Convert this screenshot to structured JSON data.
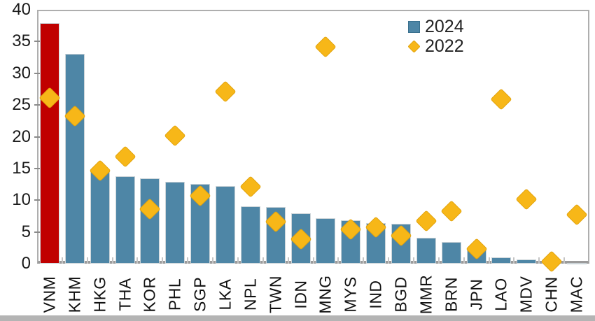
{
  "chart_data": {
    "type": "bar",
    "title": "",
    "xlabel": "",
    "ylabel": "",
    "ylim": [
      0,
      40
    ],
    "yticks": [
      0,
      5,
      10,
      15,
      20,
      25,
      30,
      35,
      40
    ],
    "grid": false,
    "legend_position": "top-right",
    "categories": [
      "VNM",
      "KHM",
      "HKG",
      "THA",
      "KOR",
      "PHL",
      "SGP",
      "LKA",
      "NPL",
      "TWN",
      "IDN",
      "MNG",
      "MYS",
      "IND",
      "BGD",
      "MMR",
      "BRN",
      "JPN",
      "LAO",
      "MDV",
      "CHN",
      "MAC"
    ],
    "series": [
      {
        "name": "2024",
        "type": "bar",
        "color": "#4e86a6",
        "values": [
          37.9,
          33.1,
          14.8,
          13.8,
          13.4,
          12.9,
          12.6,
          12.2,
          9.0,
          8.9,
          7.9,
          7.2,
          6.8,
          6.4,
          6.3,
          4.1,
          3.4,
          2.3,
          1.0,
          0.7,
          0.4,
          0.15
        ]
      },
      {
        "name": "2022",
        "type": "scatter",
        "marker": "diamond",
        "color": "#f7b718",
        "values": [
          26.1,
          23.3,
          14.7,
          16.9,
          8.6,
          20.2,
          10.7,
          27.1,
          12.1,
          6.6,
          3.9,
          34.2,
          5.4,
          5.7,
          4.4,
          6.7,
          8.3,
          2.3,
          25.9,
          10.1,
          0.3,
          7.7
        ]
      }
    ],
    "highlight": {
      "category": "VNM",
      "color": "#c00000"
    }
  },
  "legend": {
    "items": [
      {
        "label": "2024",
        "marker": "square-icon",
        "color": "#4e86a6"
      },
      {
        "label": "2022",
        "marker": "diamond-icon",
        "color": "#f7b718"
      }
    ]
  },
  "colors": {
    "bar": "#4e86a6",
    "bar_highlight": "#c00000",
    "diamond": "#f7b718",
    "axis": "#aeaeae",
    "text": "#1a1a1a"
  }
}
